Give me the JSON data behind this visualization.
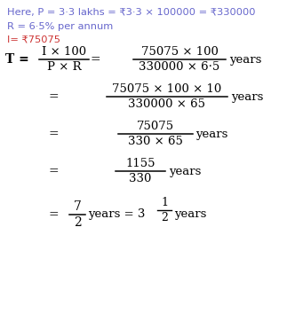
{
  "bg_color": "#ffffff",
  "line1": "Here, P = 3·3 lakhs = ₹3·3 × 100000 = ₹330000",
  "line2": "R = 6·5% per annum",
  "line3": "I= ₹75075",
  "line1_color": "#6666cc",
  "line2_color": "#6666cc",
  "line3_color": "#cc3333",
  "eq_color": "#000000",
  "fig_width": 3.41,
  "fig_height": 3.62,
  "dpi": 100
}
